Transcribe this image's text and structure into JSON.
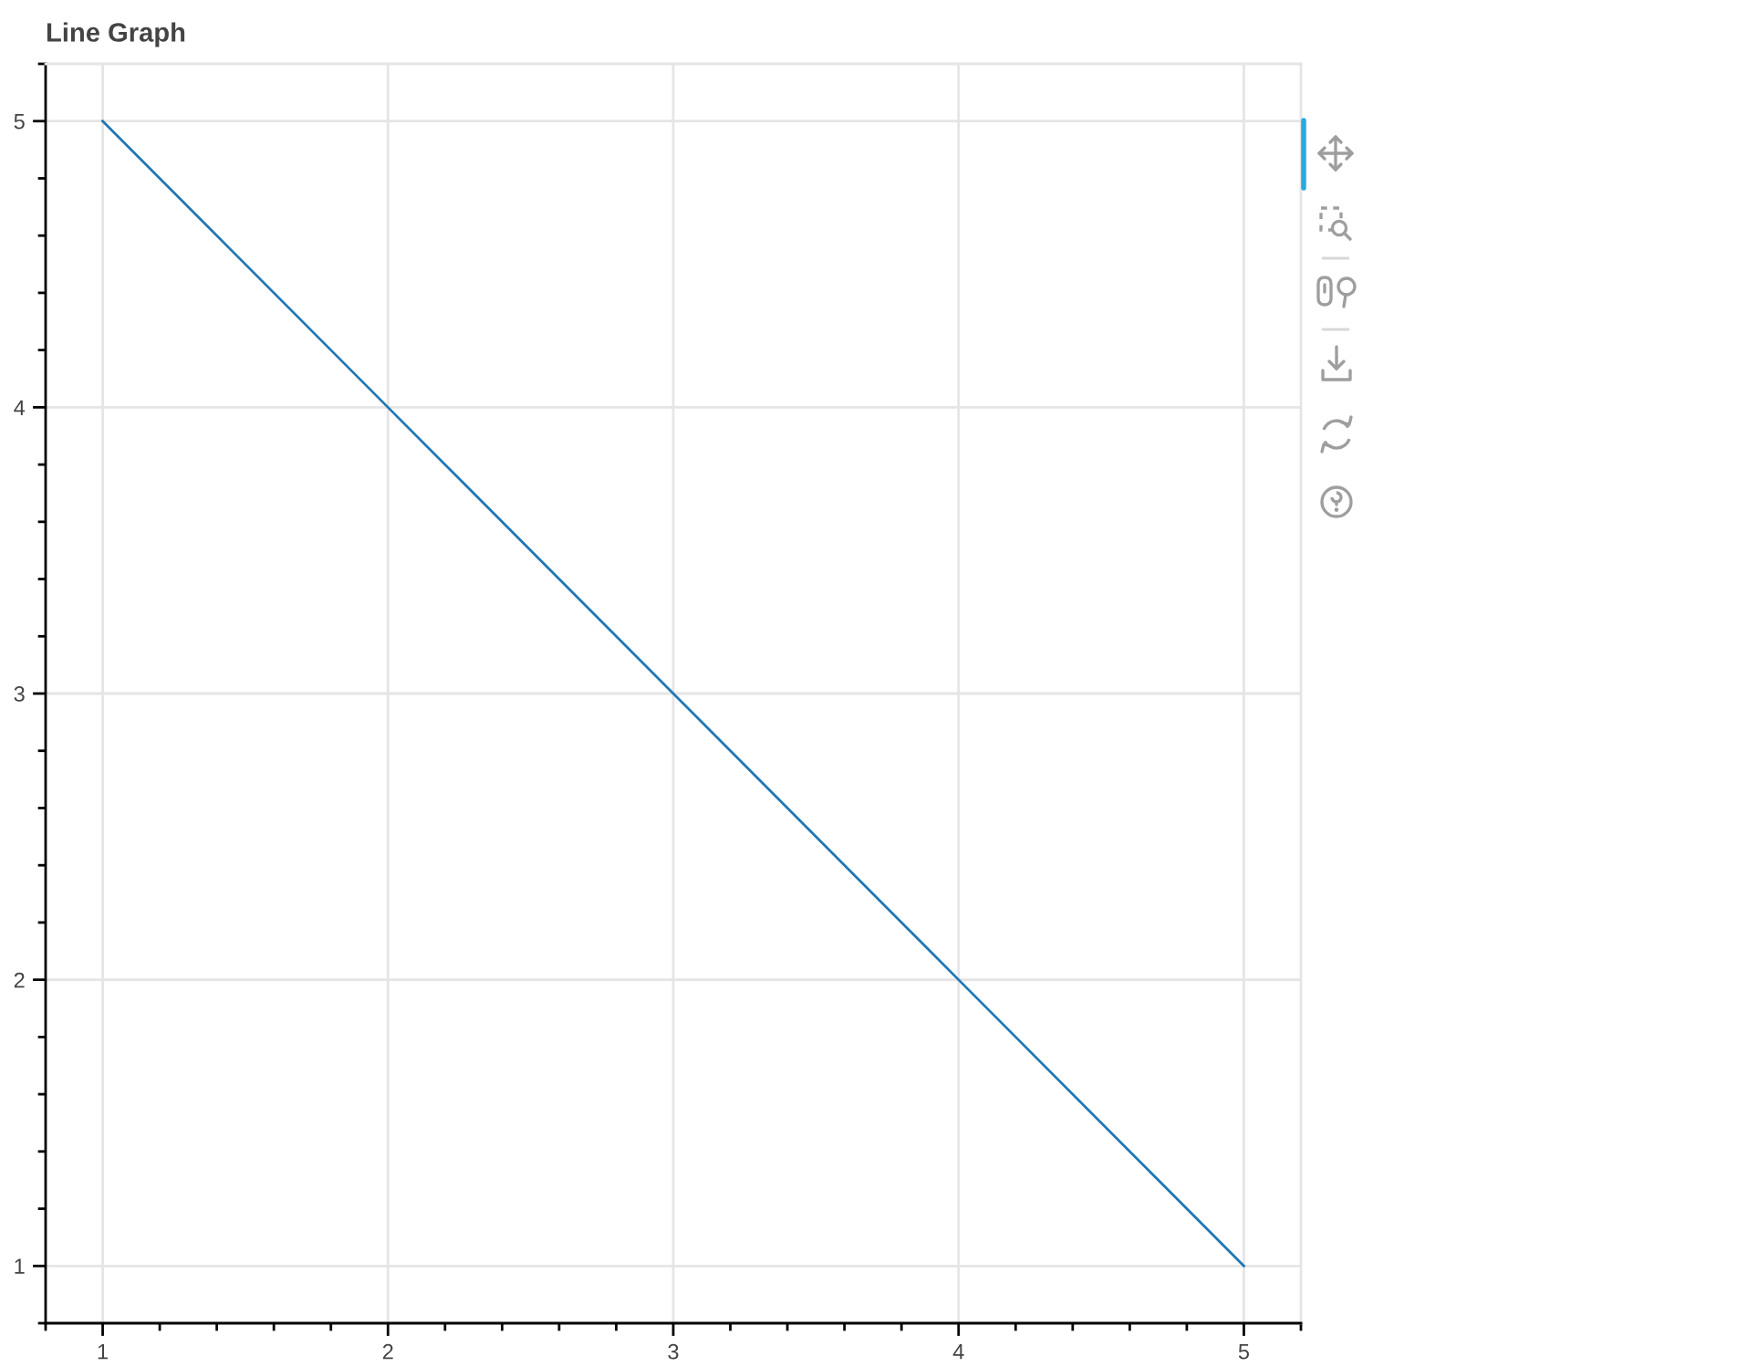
{
  "chart_data": {
    "type": "line",
    "title": "Line Graph",
    "x": [
      1,
      2,
      3,
      4,
      5
    ],
    "series": [
      {
        "color": "#1f77b4",
        "values": [
          5,
          4,
          3,
          2,
          1
        ]
      }
    ],
    "xlim": [
      0.8,
      5.2
    ],
    "ylim": [
      0.8,
      5.2
    ],
    "xticks": [
      1,
      2,
      3,
      4,
      5
    ],
    "yticks": [
      1,
      2,
      3,
      4,
      5
    ],
    "grid": true,
    "line_style": "solid"
  }
}
